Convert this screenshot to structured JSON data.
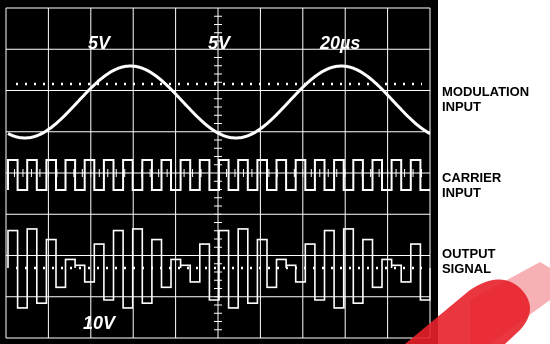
{
  "scale_top": [
    "5V",
    "5V",
    "20µs"
  ],
  "scale_bottom": "10V",
  "labels": [
    {
      "line1": "MODULATION",
      "line2": "INPUT"
    },
    {
      "line1": "CARRIER",
      "line2": "INPUT"
    },
    {
      "line1": "OUTPUT",
      "line2": "SIGNAL"
    }
  ],
  "colors": {
    "screen": "#000000",
    "trace": "#ffffff",
    "watermark": "#e8202a"
  },
  "signal": {
    "modulation_cycles": 2,
    "carrier_cycles": 22
  }
}
